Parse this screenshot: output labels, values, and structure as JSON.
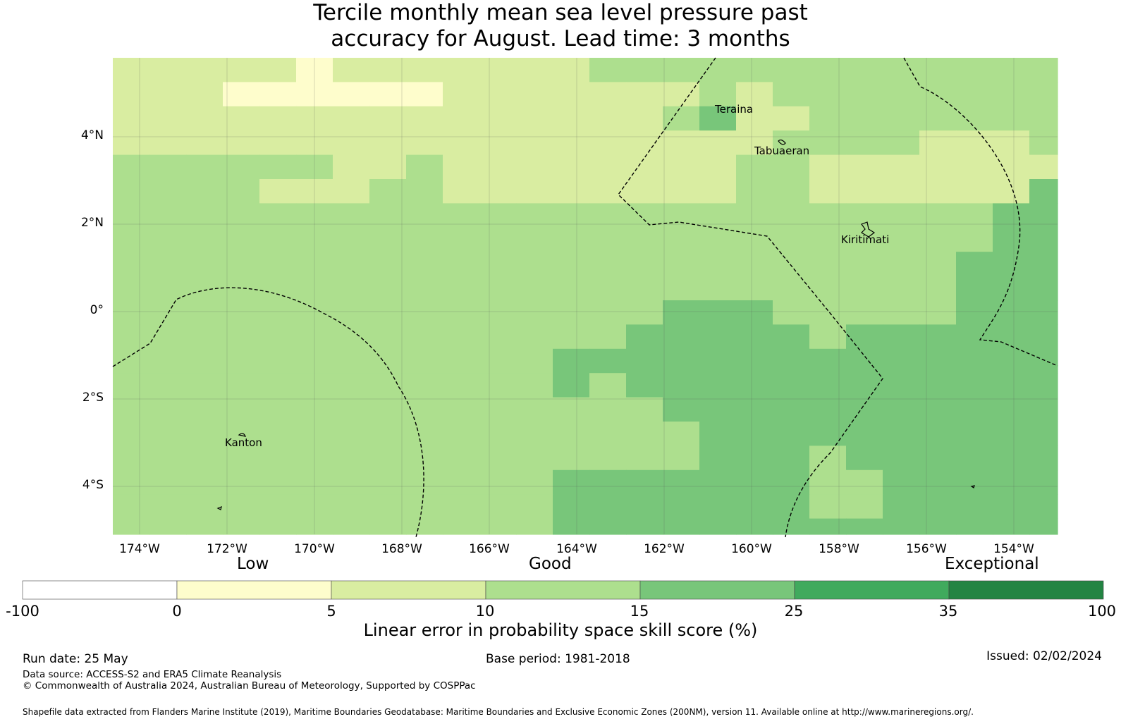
{
  "title_lines": [
    "Tercile monthly mean sea level pressure past",
    "accuracy for August. Lead time: 3 months"
  ],
  "map": {
    "lat_ticks": [
      "4°N",
      "2°N",
      "0°",
      "2°S",
      "4°S"
    ],
    "lon_ticks": [
      "174°W",
      "172°W",
      "170°W",
      "168°W",
      "166°W",
      "164°W",
      "162°W",
      "160°W",
      "158°W",
      "156°W",
      "154°W"
    ],
    "places": [
      "Teraina",
      "Tabuaeran",
      "Kiritimati",
      "Kanton"
    ]
  },
  "colorbar": {
    "categories": [
      "Low",
      "Good",
      "Exceptional"
    ],
    "tick_labels": [
      "-100",
      "0",
      "5",
      "10",
      "15",
      "25",
      "35",
      "100"
    ],
    "colors": [
      "#ffffff",
      "#fefdcc",
      "#d9eda1",
      "#addf8e",
      "#78c67a",
      "#40aa5d",
      "#238443"
    ],
    "title": "Linear error in probability space skill score (%)"
  },
  "footer": {
    "run_date": "Run date: 25 May",
    "base_period": "Base period: 1981-2018",
    "issued": "Issued: 02/02/2024",
    "data_source": "Data source: ACCESS-S2 and ERA5 Climate Reanalysis",
    "copyright": "© Commonwealth of Australia 2024, Australian Bureau of Meteorology, Supported by COSPPac",
    "shapefile": "Shapefile data extracted from Flanders Marine Institute (2019), Maritime Boundaries Geodatabase: Maritime Boundaries and Exclusive Economic Zones (200NM), version 11. Available online at http://www.marineregions.org/."
  }
}
